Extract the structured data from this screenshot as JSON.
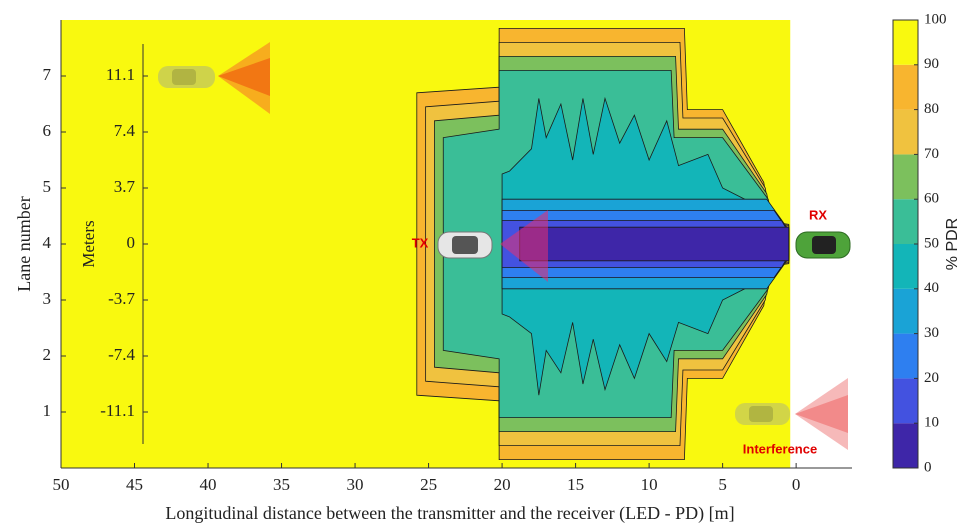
{
  "chart_data": {
    "type": "contour",
    "xlabel": "Longitudinal distance between the transmitter and the receiver (LED - PD) [m]",
    "ylabel": "Lane number",
    "xlim": [
      50,
      -3.8
    ],
    "xticks": [
      50,
      45,
      40,
      35,
      30,
      25,
      20,
      15,
      10,
      5,
      0
    ],
    "ylim": [
      0,
      8
    ],
    "yticks": [
      1,
      2,
      3,
      4,
      5,
      6,
      7
    ],
    "y2label": "Meters",
    "y2lim": [
      -14.8,
      14.8
    ],
    "y2ticks": [
      11.1,
      7.4,
      3.7,
      0,
      -3.7,
      -7.4,
      -11.1
    ],
    "colorbar": {
      "label": "% PDR",
      "ticks": [
        0,
        10,
        20,
        30,
        40,
        50,
        60,
        70,
        80,
        90,
        100
      ],
      "colors": [
        "#3e26a8",
        "#4352e0",
        "#2e7ff0",
        "#1aa3d6",
        "#13b5b8",
        "#3abe97",
        "#7cc05d",
        "#f0c23f",
        "#f8b52f",
        "#f9f90f"
      ]
    },
    "regions": [
      {
        "level": 90,
        "x": [
          50,
          0.4
        ],
        "upper": [
          8,
          8
        ],
        "lower": [
          0,
          0
        ]
      },
      {
        "level": 80,
        "x": [
          25.8,
          20.2,
          20.2,
          7.6,
          7.4,
          5,
          2.2,
          1.8,
          0.5
        ],
        "upper": [
          6.7,
          6.8,
          7.85,
          7.85,
          6.4,
          6.4,
          5.1,
          4.4,
          4.35
        ],
        "lower": [
          1.3,
          1.2,
          0.15,
          0.15,
          1.6,
          1.6,
          2.9,
          3.6,
          3.65
        ]
      },
      {
        "level": 70,
        "x": [
          25.2,
          20.2,
          20.2,
          7.9,
          7.7,
          5,
          2.1,
          1.7,
          0.5
        ],
        "upper": [
          6.45,
          6.55,
          7.6,
          7.6,
          6.25,
          6.25,
          5.0,
          4.38,
          4.33
        ],
        "lower": [
          1.55,
          1.45,
          0.4,
          0.4,
          1.75,
          1.75,
          3.0,
          3.62,
          3.67
        ]
      },
      {
        "level": 60,
        "x": [
          24.6,
          20.2,
          20.2,
          8.2,
          8,
          5,
          2,
          1.6,
          0.5
        ],
        "upper": [
          6.2,
          6.3,
          7.35,
          7.35,
          6.05,
          6.05,
          4.9,
          4.35,
          4.3
        ],
        "lower": [
          1.8,
          1.7,
          0.65,
          0.65,
          1.95,
          1.95,
          3.1,
          3.65,
          3.7
        ]
      },
      {
        "level": 50,
        "x": [
          24,
          20.2,
          20.2,
          8.5,
          8.3,
          5,
          1.9,
          1.5,
          0.5
        ],
        "upper": [
          5.9,
          6.05,
          7.1,
          7.1,
          5.9,
          5.9,
          4.8,
          4.3,
          4.28
        ],
        "lower": [
          2.1,
          1.95,
          0.9,
          0.9,
          2.1,
          2.1,
          3.2,
          3.7,
          3.72
        ]
      },
      {
        "level": 40,
        "x": [
          20,
          19.5,
          18,
          17.5,
          17,
          16,
          15.2,
          14.5,
          13.8,
          13,
          12,
          11,
          10,
          8.8,
          8,
          6,
          5,
          2,
          0.5
        ],
        "upper": [
          5.25,
          5.3,
          5.7,
          6.6,
          5.9,
          6.5,
          5.5,
          6.6,
          5.6,
          6.6,
          5.8,
          6.3,
          5.5,
          6.2,
          5.4,
          5.6,
          5.0,
          4.6,
          4.26
        ],
        "lower": [
          2.75,
          2.7,
          2.4,
          1.3,
          2.1,
          1.7,
          2.6,
          1.5,
          2.3,
          1.4,
          2.2,
          1.6,
          2.4,
          1.9,
          2.6,
          2.4,
          3.0,
          3.4,
          3.74
        ]
      },
      {
        "level": 30,
        "x": [
          20,
          2,
          0.5
        ],
        "upper": [
          4.8,
          4.8,
          4.25
        ],
        "lower": [
          3.2,
          3.2,
          3.75
        ]
      },
      {
        "level": 20,
        "x": [
          20,
          1.5,
          0.5
        ],
        "upper": [
          4.6,
          4.6,
          4.22
        ],
        "lower": [
          3.4,
          3.4,
          3.78
        ]
      },
      {
        "level": 10,
        "x": [
          20,
          1,
          0.5
        ],
        "upper": [
          4.42,
          4.42,
          4.2
        ],
        "lower": [
          3.58,
          3.58,
          3.8
        ]
      },
      {
        "level": 0,
        "x": [
          18.8,
          0.5
        ],
        "upper": [
          4.3,
          4.3
        ],
        "lower": [
          3.7,
          3.7
        ]
      }
    ],
    "annotations": [
      "TX",
      "RX",
      "Interference"
    ]
  }
}
